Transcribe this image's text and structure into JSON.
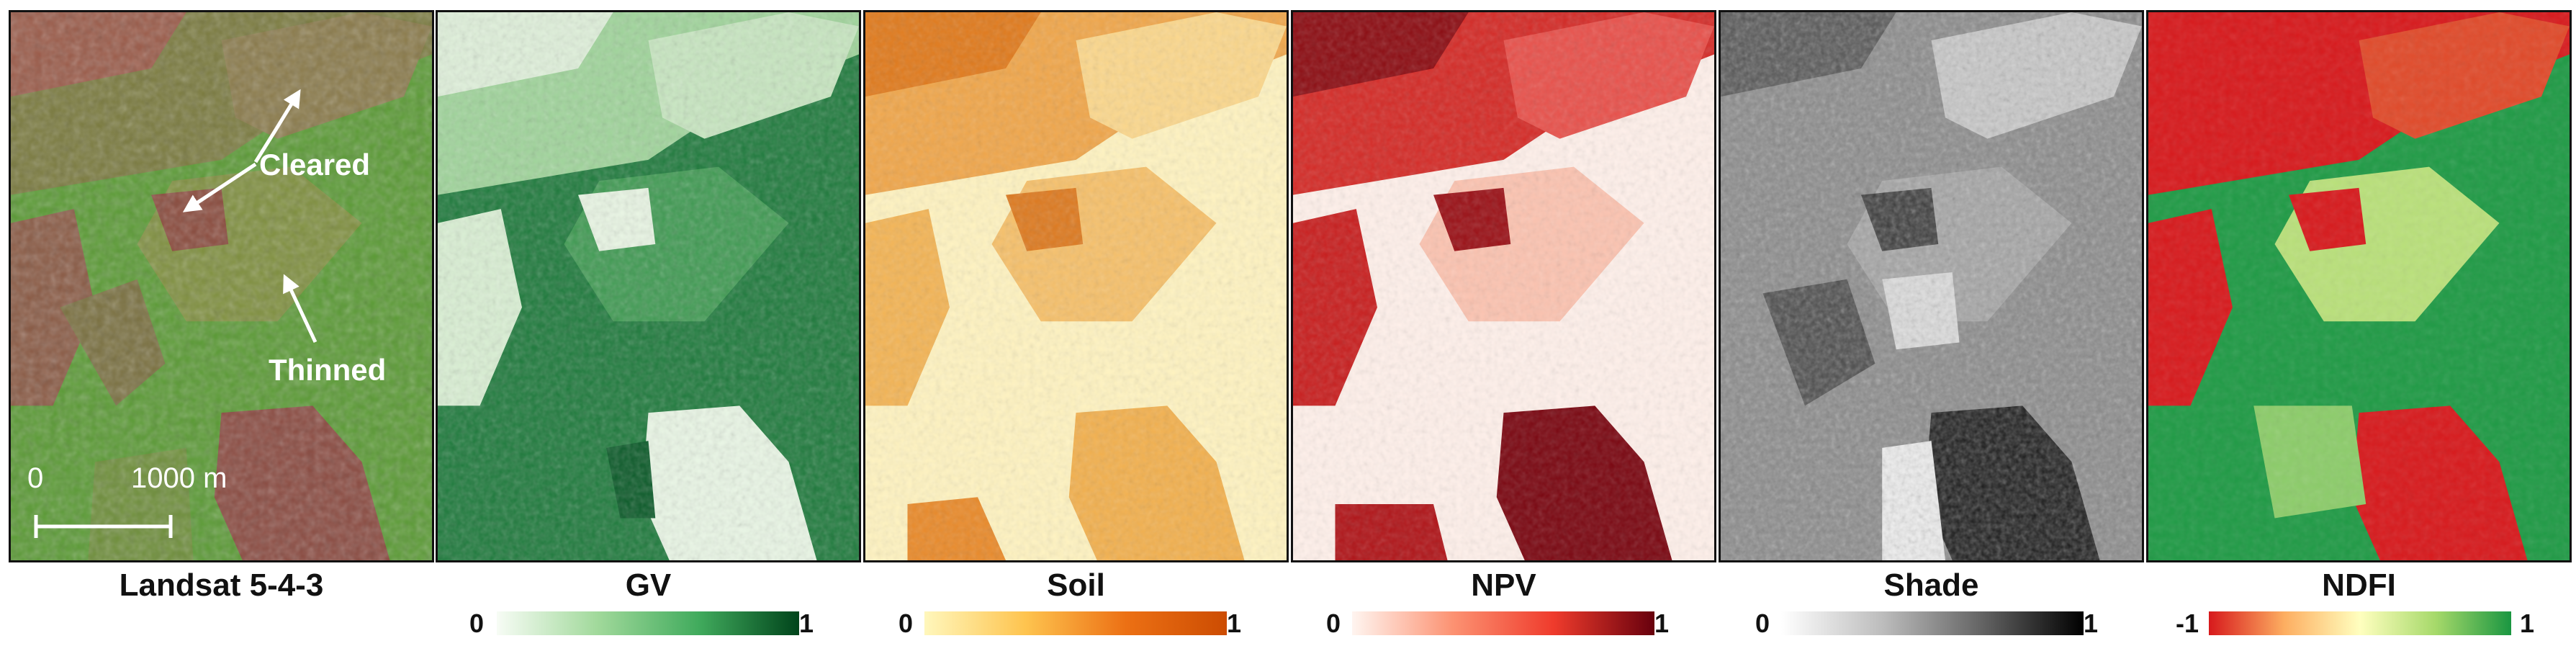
{
  "panels": [
    {
      "id": "landsat",
      "title": "Landsat 5-4-3"
    },
    {
      "id": "gv",
      "title": "GV",
      "scale": {
        "min": "0",
        "max": "1",
        "colors": [
          "#f7fcf5",
          "#a1d99b",
          "#41ab5d",
          "#00441b"
        ]
      }
    },
    {
      "id": "soil",
      "title": "Soil",
      "scale": {
        "min": "0",
        "max": "1",
        "colors": [
          "#fff7bc",
          "#fec44f",
          "#ec7014",
          "#cc4c02"
        ]
      }
    },
    {
      "id": "npv",
      "title": "NPV",
      "scale": {
        "min": "0",
        "max": "1",
        "colors": [
          "#fff5f0",
          "#fc9272",
          "#ef3b2c",
          "#67000d"
        ]
      }
    },
    {
      "id": "shade",
      "title": "Shade",
      "scale": {
        "min": "0",
        "max": "1",
        "colors": [
          "#ffffff",
          "#bdbdbd",
          "#636363",
          "#000000"
        ]
      }
    },
    {
      "id": "ndfi",
      "title": "NDFI",
      "scale": {
        "min": "-1",
        "max": "1",
        "colors": [
          "#d7191c",
          "#fdae61",
          "#ffffbf",
          "#a6d96a",
          "#1a9641"
        ]
      }
    }
  ],
  "annotations": {
    "cleared": "Cleared",
    "thinned": "Thinned"
  },
  "scalebar": {
    "start": "0",
    "end": "1000 m"
  }
}
